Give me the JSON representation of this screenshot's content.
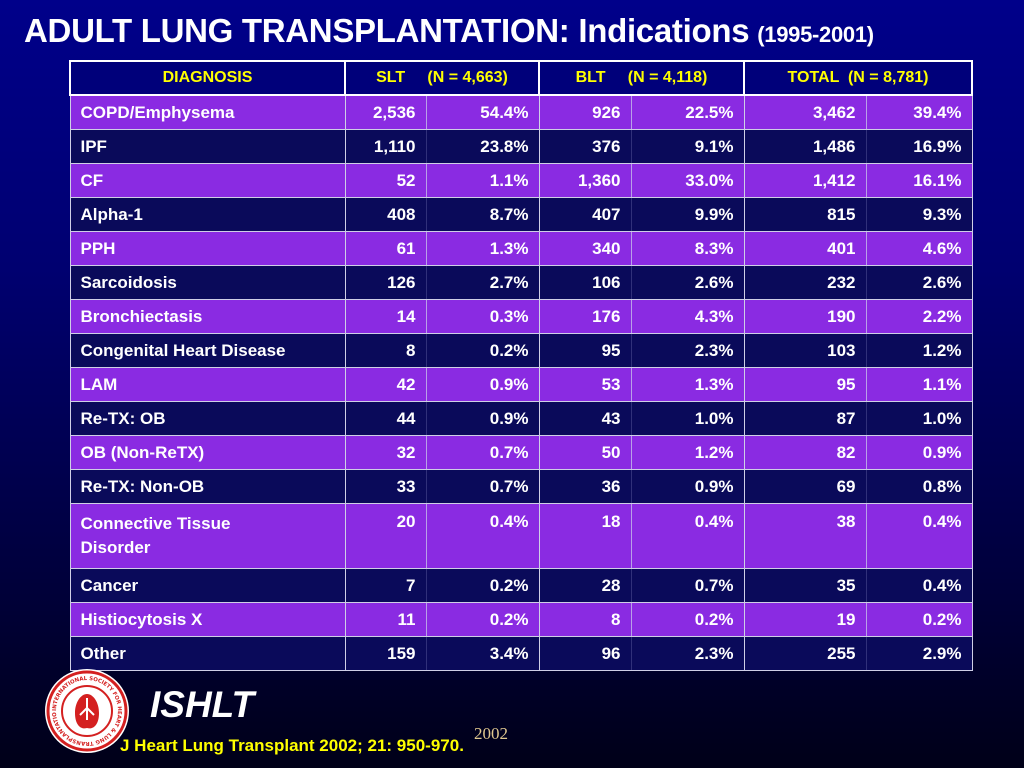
{
  "slide": {
    "title": "ADULT LUNG TRANSPLANTATION: Indications",
    "title_years": "(1995-2001)",
    "brand": "ISHLT",
    "year": "2002",
    "citation": "J Heart Lung Transplant 2002; 21: 950-970."
  },
  "table": {
    "headers": [
      "DIAGNOSIS",
      "SLT     (N = 4,663)",
      "BLT     (N = 4,118)",
      "TOTAL  (N = 8,781)"
    ],
    "rows": [
      {
        "diagnosis": "COPD/Emphysema",
        "slt_n": "2,536",
        "slt_pct": "54.4%",
        "blt_n": "926",
        "blt_pct": "22.5%",
        "total_n": "3,462",
        "total_pct": "39.4%"
      },
      {
        "diagnosis": "IPF",
        "slt_n": "1,110",
        "slt_pct": "23.8%",
        "blt_n": "376",
        "blt_pct": "9.1%",
        "total_n": "1,486",
        "total_pct": "16.9%"
      },
      {
        "diagnosis": "CF",
        "slt_n": "52",
        "slt_pct": "1.1%",
        "blt_n": "1,360",
        "blt_pct": "33.0%",
        "total_n": "1,412",
        "total_pct": "16.1%"
      },
      {
        "diagnosis": "Alpha-1",
        "slt_n": "408",
        "slt_pct": "8.7%",
        "blt_n": "407",
        "blt_pct": "9.9%",
        "total_n": "815",
        "total_pct": "9.3%"
      },
      {
        "diagnosis": "PPH",
        "slt_n": "61",
        "slt_pct": "1.3%",
        "blt_n": "340",
        "blt_pct": "8.3%",
        "total_n": "401",
        "total_pct": "4.6%"
      },
      {
        "diagnosis": "Sarcoidosis",
        "slt_n": "126",
        "slt_pct": "2.7%",
        "blt_n": "106",
        "blt_pct": "2.6%",
        "total_n": "232",
        "total_pct": "2.6%"
      },
      {
        "diagnosis": "Bronchiectasis",
        "slt_n": "14",
        "slt_pct": "0.3%",
        "blt_n": "176",
        "blt_pct": "4.3%",
        "total_n": "190",
        "total_pct": "2.2%"
      },
      {
        "diagnosis": "Congenital Heart Disease",
        "slt_n": "8",
        "slt_pct": "0.2%",
        "blt_n": "95",
        "blt_pct": "2.3%",
        "total_n": "103",
        "total_pct": "1.2%"
      },
      {
        "diagnosis": "LAM",
        "slt_n": "42",
        "slt_pct": "0.9%",
        "blt_n": "53",
        "blt_pct": "1.3%",
        "total_n": "95",
        "total_pct": "1.1%"
      },
      {
        "diagnosis": "Re-TX: OB",
        "slt_n": "44",
        "slt_pct": "0.9%",
        "blt_n": "43",
        "blt_pct": "1.0%",
        "total_n": "87",
        "total_pct": "1.0%"
      },
      {
        "diagnosis": "OB (Non-ReTX)",
        "slt_n": "32",
        "slt_pct": "0.7%",
        "blt_n": "50",
        "blt_pct": "1.2%",
        "total_n": "82",
        "total_pct": "0.9%"
      },
      {
        "diagnosis": "Re-TX: Non-OB",
        "slt_n": "33",
        "slt_pct": "0.7%",
        "blt_n": "36",
        "blt_pct": "0.9%",
        "total_n": "69",
        "total_pct": "0.8%"
      },
      {
        "diagnosis": "Connective Tissue Disorder",
        "slt_n": "20",
        "slt_pct": "0.4%",
        "blt_n": "18",
        "blt_pct": "0.4%",
        "total_n": "38",
        "total_pct": "0.4%"
      },
      {
        "diagnosis": "Cancer",
        "slt_n": "7",
        "slt_pct": "0.2%",
        "blt_n": "28",
        "blt_pct": "0.7%",
        "total_n": "35",
        "total_pct": "0.4%"
      },
      {
        "diagnosis": "Histiocytosis X",
        "slt_n": "11",
        "slt_pct": "0.2%",
        "blt_n": "8",
        "blt_pct": "0.2%",
        "total_n": "19",
        "total_pct": "0.2%"
      },
      {
        "diagnosis": "Other",
        "slt_n": "159",
        "slt_pct": "3.4%",
        "blt_n": "96",
        "blt_pct": "2.3%",
        "total_n": "255",
        "total_pct": "2.9%"
      }
    ]
  },
  "colors": {
    "row_a": "#8a2be2",
    "row_b": "#0a0a5a",
    "header_text": "#ffff00",
    "citation_text": "#ffff00",
    "logo_red": "#d42020"
  },
  "logo": {
    "icon": "ishlt-seal-icon",
    "ring_text": "INTERNATIONAL SOCIETY FOR HEART & LUNG TRANSPLANTATION"
  }
}
